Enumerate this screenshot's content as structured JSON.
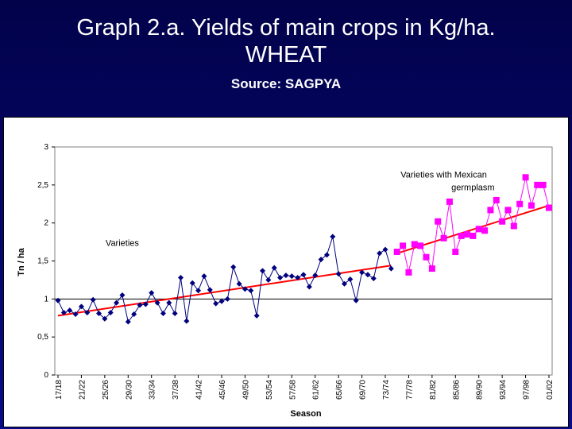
{
  "slide": {
    "title_line1": "Graph 2.a. Yields of main crops in Kg/ha.",
    "title_line2": "WHEAT",
    "source": "Source:  SAGPYA"
  },
  "colors": {
    "background": "#05066a",
    "series_varieties": "#00007f",
    "series_mexican": "#ff00ff",
    "trend": "#ff0000",
    "plot_area": "#ffffff"
  },
  "chart_data": {
    "type": "line",
    "title": "",
    "xlabel": "Season",
    "ylabel": "Tn / ha",
    "ylim": [
      0,
      3
    ],
    "yticks": [
      "0",
      "0,5",
      "1",
      "1,5",
      "2",
      "2,5",
      "3"
    ],
    "ytick_values": [
      0,
      0.5,
      1,
      1.5,
      2,
      2.5,
      3
    ],
    "xtick_labels": [
      "17/18",
      "21/22",
      "25/26",
      "29/30",
      "33/34",
      "37/38",
      "41/42",
      "45/46",
      "49/50",
      "53/54",
      "57/58",
      "61/62",
      "65/66",
      "69/70",
      "73/74",
      "77/78",
      "81/82",
      "85/86",
      "89/90",
      "93/94",
      "97/98",
      "01/02"
    ],
    "x_start_year": 1917,
    "x_end_year": 2001,
    "reference_line": 1,
    "grid": false,
    "annotations": [
      {
        "text": "Varieties",
        "x": 1928,
        "y": 1.7
      },
      {
        "text": "Varieties with Mexican",
        "x": 1983,
        "y": 2.6
      },
      {
        "text": "germplasm",
        "x": 1988,
        "y": 2.43
      }
    ],
    "series": [
      {
        "name": "",
        "marker": "diamond",
        "x": [
          1917,
          1918,
          1919,
          1920,
          1921,
          1922,
          1923,
          1924,
          1925,
          1926,
          1927,
          1928,
          1929,
          1930,
          1931,
          1932,
          1933,
          1934,
          1935,
          1936,
          1937,
          1938,
          1939,
          1940,
          1941,
          1942,
          1943,
          1944,
          1945,
          1946,
          1947,
          1948,
          1949,
          1950,
          1951,
          1952,
          1953,
          1954,
          1955,
          1956,
          1957,
          1958,
          1959,
          1960,
          1961,
          1962,
          1963,
          1964,
          1965,
          1966,
          1967,
          1968,
          1969,
          1970,
          1971,
          1972,
          1973,
          1974
        ],
        "values": [
          0.98,
          0.82,
          0.85,
          0.8,
          0.9,
          0.82,
          0.99,
          0.81,
          0.74,
          0.82,
          0.95,
          1.05,
          0.7,
          0.8,
          0.92,
          0.93,
          1.08,
          0.95,
          0.81,
          0.95,
          0.81,
          1.28,
          0.71,
          1.21,
          1.11,
          1.3,
          1.12,
          0.94,
          0.97,
          1.0,
          1.42,
          1.2,
          1.13,
          1.11,
          0.78,
          1.37,
          1.25,
          1.41,
          1.28,
          1.31,
          1.3,
          1.28,
          1.32,
          1.16,
          1.31,
          1.52,
          1.58,
          1.82,
          1.33,
          1.2,
          1.26,
          0.98,
          1.35,
          1.32,
          1.27,
          1.6,
          1.65,
          1.4
        ]
      },
      {
        "name": "",
        "marker": "square",
        "x": [
          1975,
          1976,
          1977,
          1978,
          1979,
          1980,
          1981,
          1982,
          1983,
          1984,
          1985,
          1986,
          1987,
          1988,
          1989,
          1990,
          1991,
          1992,
          1993,
          1994,
          1995,
          1996,
          1997,
          1998,
          1999,
          2000,
          2001
        ],
        "values": [
          1.62,
          1.7,
          1.35,
          1.72,
          1.7,
          1.55,
          1.4,
          2.02,
          1.8,
          2.28,
          1.62,
          1.83,
          1.85,
          1.83,
          1.92,
          1.9,
          2.17,
          2.3,
          2.02,
          2.17,
          1.96,
          2.25,
          2.6,
          2.23,
          2.5,
          2.5,
          2.2
        ]
      }
    ],
    "trendlines": [
      {
        "x": [
          1917,
          1974
        ],
        "values": [
          0.78,
          1.44
        ]
      },
      {
        "x": [
          1975,
          2001
        ],
        "values": [
          1.6,
          2.23
        ]
      }
    ]
  }
}
